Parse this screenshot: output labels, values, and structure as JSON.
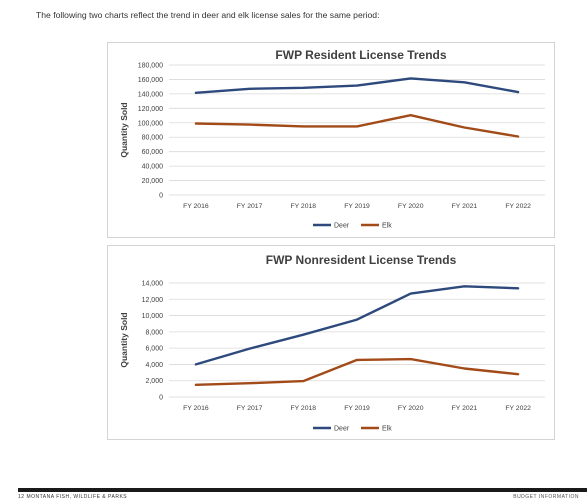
{
  "page": {
    "intro_text": "The following two charts reflect the trend in deer and elk license sales for the same period:",
    "footer_left": "12 MONTANA FISH, WILDLIFE & PARKS",
    "footer_right": "BUDGET INFORMATION"
  },
  "colors": {
    "deer": "#2e4a7d",
    "elk": "#a24b19",
    "grid": "#d9d9d9",
    "axis_text": "#404040",
    "title": "#404040"
  },
  "chart_data": [
    {
      "id": "resident",
      "type": "line",
      "title": "FWP Resident License Trends",
      "xlabel": "",
      "ylabel": "Quantity Sold",
      "categories": [
        "FY 2016",
        "FY 2017",
        "FY 2018",
        "FY 2019",
        "FY 2020",
        "FY 2021",
        "FY 2022"
      ],
      "ylim": [
        0,
        180000
      ],
      "yticks": [
        0,
        20000,
        40000,
        60000,
        80000,
        100000,
        120000,
        140000,
        160000,
        180000
      ],
      "ytick_labels": [
        "0",
        "20,000",
        "40,000",
        "60,000",
        "80,000",
        "100,000",
        "120,000",
        "140,000",
        "160,000",
        "180,000"
      ],
      "grid": true,
      "legend": "bottom",
      "series": [
        {
          "name": "Deer",
          "color": "#2e4a7d",
          "values": [
            141500,
            147000,
            148500,
            151500,
            161500,
            156000,
            142500
          ]
        },
        {
          "name": "Elk",
          "color": "#a24b19",
          "values": [
            99000,
            97500,
            95000,
            95000,
            110500,
            93500,
            81000
          ]
        }
      ]
    },
    {
      "id": "nonresident",
      "type": "line",
      "title": "FWP Nonresident License Trends",
      "xlabel": "",
      "ylabel": "Quantity Sold",
      "categories": [
        "FY 2016",
        "FY 2017",
        "FY 2018",
        "FY 2019",
        "FY 2020",
        "FY 2021",
        "FY 2022"
      ],
      "ylim": [
        0,
        14000
      ],
      "yticks": [
        0,
        2000,
        4000,
        6000,
        8000,
        10000,
        12000,
        14000
      ],
      "ytick_labels": [
        "0",
        "2,000",
        "4,000",
        "6,000",
        "8,000",
        "10,000",
        "12,000",
        "14,000"
      ],
      "grid": true,
      "legend": "bottom",
      "series": [
        {
          "name": "Deer",
          "color": "#2e4a7d",
          "values": [
            4000,
            5950,
            7650,
            9500,
            12700,
            13600,
            13350
          ]
        },
        {
          "name": "Elk",
          "color": "#a24b19",
          "values": [
            1500,
            1700,
            1950,
            4550,
            4650,
            3500,
            2800
          ]
        }
      ]
    }
  ]
}
